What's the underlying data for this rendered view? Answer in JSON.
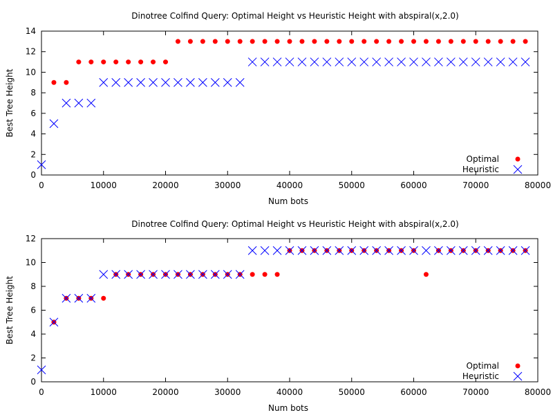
{
  "chart_data": [
    {
      "type": "scatter",
      "title": "Dinotree Colfind Query: Optimal Height vs Heuristic Height with abspiral(x,2.0)",
      "xlabel": "Num bots",
      "ylabel": "Best Tree Height",
      "xlim": [
        0,
        80000
      ],
      "ylim": [
        0,
        14
      ],
      "xticks": [
        0,
        10000,
        20000,
        30000,
        40000,
        50000,
        60000,
        70000,
        80000
      ],
      "yticks": [
        0,
        2,
        4,
        6,
        8,
        10,
        12,
        14
      ],
      "legend_placement": "bottom-right",
      "series": [
        {
          "name": "Optimal",
          "marker": "filled-circle",
          "color": "#ff0000",
          "x": [
            2000,
            4000,
            6000,
            8000,
            10000,
            12000,
            14000,
            16000,
            18000,
            20000,
            22000,
            24000,
            26000,
            28000,
            30000,
            32000,
            34000,
            36000,
            38000,
            40000,
            42000,
            44000,
            46000,
            48000,
            50000,
            52000,
            54000,
            56000,
            58000,
            60000,
            62000,
            64000,
            66000,
            68000,
            70000,
            72000,
            74000,
            76000,
            78000
          ],
          "y": [
            9,
            9,
            11,
            11,
            11,
            11,
            11,
            11,
            11,
            11,
            13,
            13,
            13,
            13,
            13,
            13,
            13,
            13,
            13,
            13,
            13,
            13,
            13,
            13,
            13,
            13,
            13,
            13,
            13,
            13,
            13,
            13,
            13,
            13,
            13,
            13,
            13,
            13,
            13
          ]
        },
        {
          "name": "Heuristic",
          "marker": "x",
          "color": "#0000ff",
          "x": [
            0,
            2000,
            4000,
            6000,
            8000,
            10000,
            12000,
            14000,
            16000,
            18000,
            20000,
            22000,
            24000,
            26000,
            28000,
            30000,
            32000,
            34000,
            36000,
            38000,
            40000,
            42000,
            44000,
            46000,
            48000,
            50000,
            52000,
            54000,
            56000,
            58000,
            60000,
            62000,
            64000,
            66000,
            68000,
            70000,
            72000,
            74000,
            76000,
            78000
          ],
          "y": [
            1,
            5,
            7,
            7,
            7,
            9,
            9,
            9,
            9,
            9,
            9,
            9,
            9,
            9,
            9,
            9,
            9,
            11,
            11,
            11,
            11,
            11,
            11,
            11,
            11,
            11,
            11,
            11,
            11,
            11,
            11,
            11,
            11,
            11,
            11,
            11,
            11,
            11,
            11,
            11
          ]
        }
      ]
    },
    {
      "type": "scatter",
      "title": "Dinotree Colfind Query: Optimal Height vs Heuristic Height with abspiral(x,2.0)",
      "xlabel": "Num bots",
      "ylabel": "Best Tree Height",
      "xlim": [
        0,
        80000
      ],
      "ylim": [
        0,
        12
      ],
      "xticks": [
        0,
        10000,
        20000,
        30000,
        40000,
        50000,
        60000,
        70000,
        80000
      ],
      "yticks": [
        0,
        2,
        4,
        6,
        8,
        10,
        12
      ],
      "legend_placement": "bottom-right",
      "series": [
        {
          "name": "Optimal",
          "marker": "filled-circle",
          "color": "#ff0000",
          "x": [
            2000,
            4000,
            6000,
            8000,
            10000,
            12000,
            14000,
            16000,
            18000,
            20000,
            22000,
            24000,
            26000,
            28000,
            30000,
            32000,
            34000,
            36000,
            38000,
            40000,
            42000,
            44000,
            46000,
            48000,
            50000,
            52000,
            54000,
            56000,
            58000,
            60000,
            62000,
            64000,
            66000,
            68000,
            70000,
            72000,
            74000,
            76000,
            78000
          ],
          "y": [
            5,
            7,
            7,
            7,
            7,
            9,
            9,
            9,
            9,
            9,
            9,
            9,
            9,
            9,
            9,
            9,
            9,
            9,
            9,
            11,
            11,
            11,
            11,
            11,
            11,
            11,
            11,
            11,
            11,
            11,
            9,
            11,
            11,
            11,
            11,
            11,
            11,
            11,
            11
          ]
        },
        {
          "name": "Heuristic",
          "marker": "x",
          "color": "#0000ff",
          "x": [
            0,
            2000,
            4000,
            6000,
            8000,
            10000,
            12000,
            14000,
            16000,
            18000,
            20000,
            22000,
            24000,
            26000,
            28000,
            30000,
            32000,
            34000,
            36000,
            38000,
            40000,
            42000,
            44000,
            46000,
            48000,
            50000,
            52000,
            54000,
            56000,
            58000,
            60000,
            62000,
            64000,
            66000,
            68000,
            70000,
            72000,
            74000,
            76000,
            78000
          ],
          "y": [
            1,
            5,
            7,
            7,
            7,
            9,
            9,
            9,
            9,
            9,
            9,
            9,
            9,
            9,
            9,
            9,
            9,
            11,
            11,
            11,
            11,
            11,
            11,
            11,
            11,
            11,
            11,
            11,
            11,
            11,
            11,
            11,
            11,
            11,
            11,
            11,
            11,
            11,
            11,
            11
          ]
        }
      ]
    }
  ]
}
